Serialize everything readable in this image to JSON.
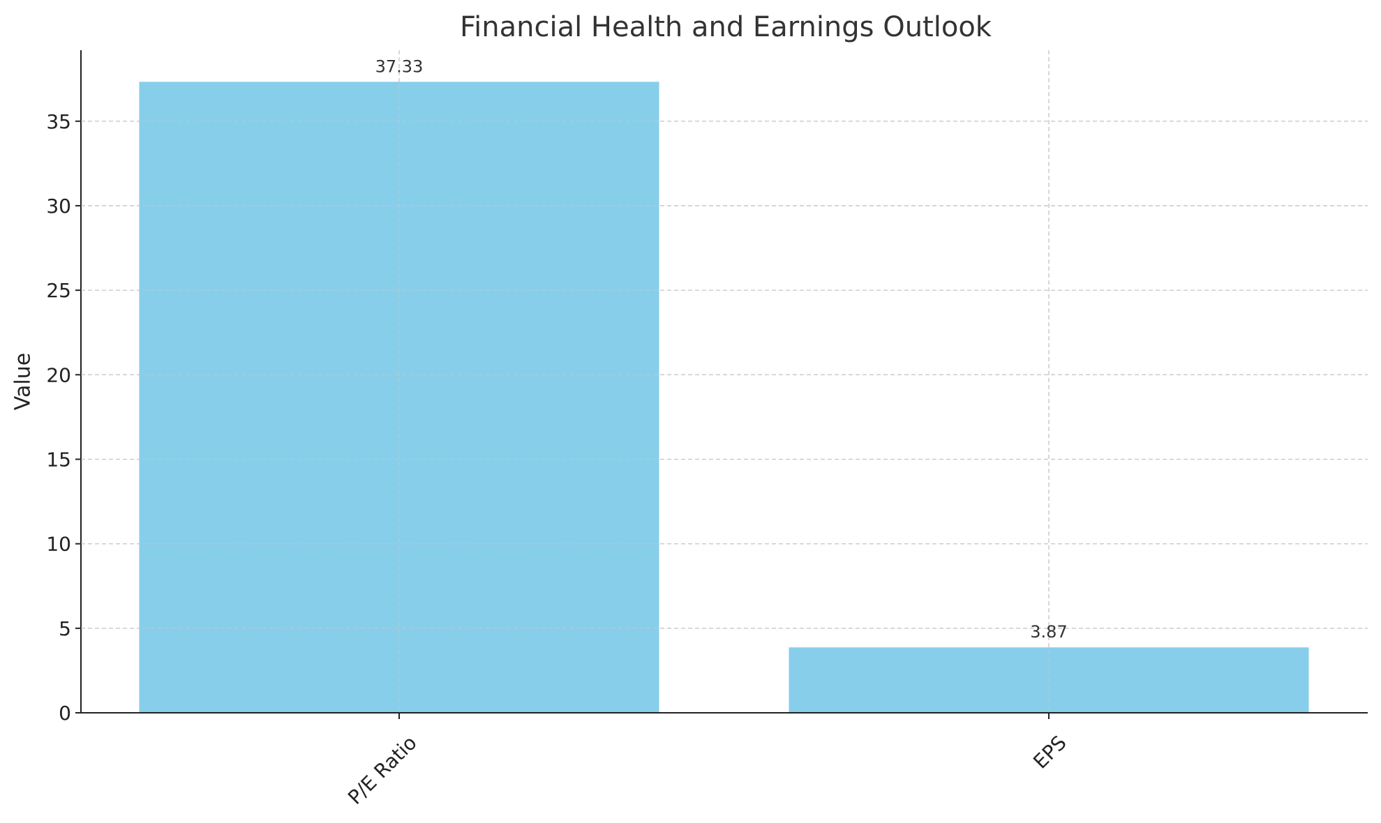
{
  "chart_data": {
    "type": "bar",
    "title": "Financial Health and Earnings Outlook",
    "xlabel": "",
    "ylabel": "Value",
    "categories": [
      "P/E Ratio",
      "EPS"
    ],
    "values": [
      37.33,
      3.87
    ],
    "data_labels": [
      "37.33",
      "3.87"
    ],
    "ylim": [
      0,
      39.2
    ],
    "yticks": [
      0,
      5,
      10,
      15,
      20,
      25,
      30,
      35
    ],
    "grid": true,
    "legend": "none",
    "bar_color": "#87CEEB",
    "x_tick_rotation_deg": -45
  }
}
